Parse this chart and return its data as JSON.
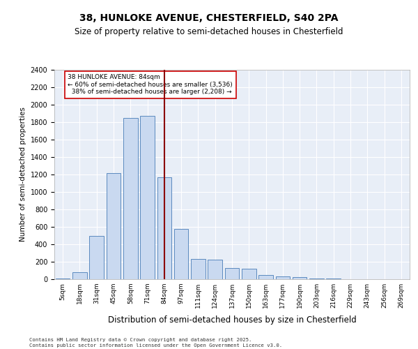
{
  "title1": "38, HUNLOKE AVENUE, CHESTERFIELD, S40 2PA",
  "title2": "Size of property relative to semi-detached houses in Chesterfield",
  "xlabel": "Distribution of semi-detached houses by size in Chesterfield",
  "ylabel": "Number of semi-detached properties",
  "categories": [
    "5sqm",
    "18sqm",
    "31sqm",
    "45sqm",
    "58sqm",
    "71sqm",
    "84sqm",
    "97sqm",
    "111sqm",
    "124sqm",
    "137sqm",
    "150sqm",
    "163sqm",
    "177sqm",
    "190sqm",
    "203sqm",
    "216sqm",
    "229sqm",
    "243sqm",
    "256sqm",
    "269sqm"
  ],
  "values": [
    10,
    80,
    500,
    1220,
    1850,
    1870,
    1170,
    580,
    230,
    225,
    125,
    120,
    50,
    35,
    22,
    10,
    5,
    3,
    2,
    1,
    0
  ],
  "property_label": "38 HUNLOKE AVENUE: 84sqm",
  "property_cat": "84sqm",
  "pct_smaller": 60,
  "pct_larger": 38,
  "n_smaller": 3536,
  "n_larger": 2208,
  "bar_color": "#c9d9f0",
  "bar_edge_color": "#5b8abf",
  "line_color": "#8b0000",
  "annotation_box_color": "#ffffff",
  "annotation_box_edge": "#cc0000",
  "bg_color": "#e8eef7",
  "grid_color": "#ffffff",
  "ylim": [
    0,
    2400
  ],
  "yticks": [
    0,
    200,
    400,
    600,
    800,
    1000,
    1200,
    1400,
    1600,
    1800,
    2000,
    2200,
    2400
  ],
  "footer": "Contains HM Land Registry data © Crown copyright and database right 2025.\nContains public sector information licensed under the Open Government Licence v3.0."
}
